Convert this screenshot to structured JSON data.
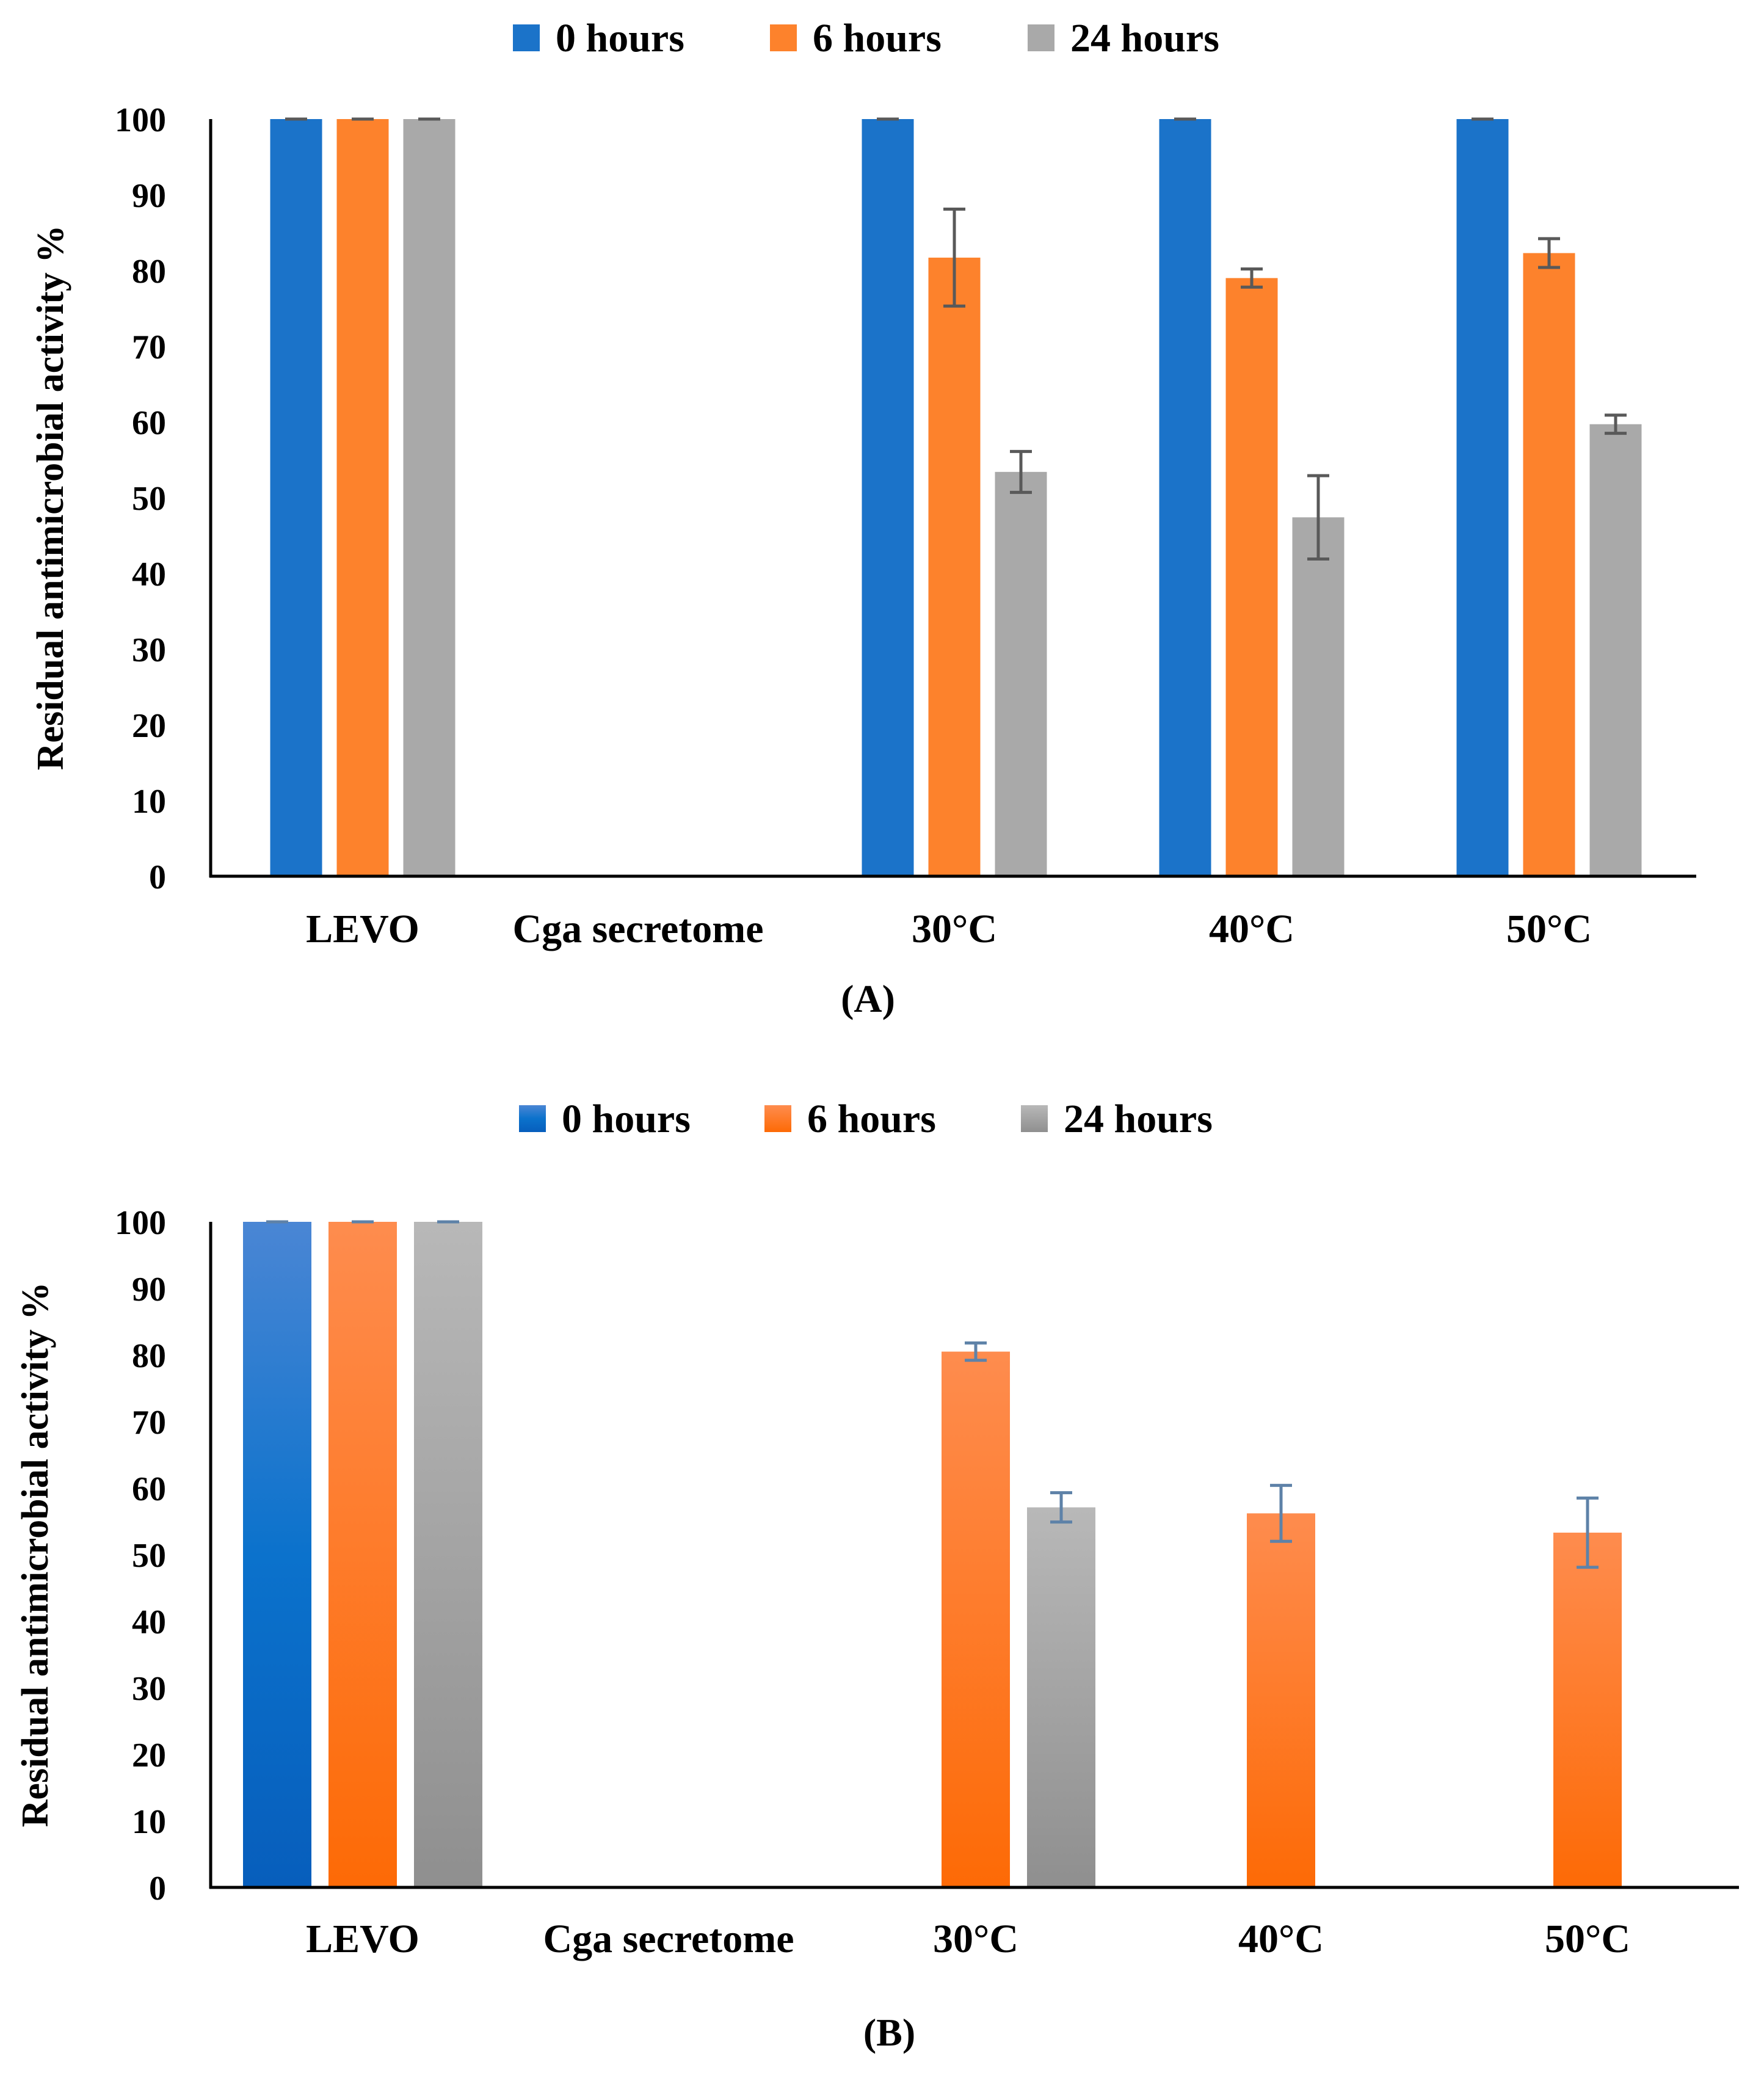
{
  "colors": {
    "blue": "#1b73c9",
    "orange": "#fd822c",
    "gray": "#a9a9a9",
    "error_bar_a": "#595959",
    "error_bar_b": "#5e82a8"
  },
  "chart_data": [
    {
      "type": "bar",
      "panel": "(A)",
      "panel_letter": "A",
      "ylabel": "Residual antimicrobial activity %",
      "ylim": [
        0,
        100
      ],
      "yticks": [
        0,
        10,
        20,
        30,
        40,
        50,
        60,
        70,
        80,
        90,
        100
      ],
      "categories": [
        "LEVO",
        "Cga secretome",
        "30°C",
        "40°C",
        "50°C"
      ],
      "legend_position": "top",
      "series": [
        {
          "name": "0 hours",
          "color": "#1b73c9",
          "values": [
            100,
            0,
            100,
            100,
            100
          ],
          "errors": [
            0,
            0,
            0,
            0,
            0
          ]
        },
        {
          "name": "6 hours",
          "color": "#fd822c",
          "values": [
            100,
            0,
            81.7,
            79,
            82.3
          ],
          "errors": [
            0,
            0,
            6.4,
            1.2,
            1.9
          ]
        },
        {
          "name": "24 hours",
          "color": "#a9a9a9",
          "values": [
            100,
            0,
            53.4,
            47.4,
            59.7
          ],
          "errors": [
            0,
            0,
            2.7,
            5.5,
            1.2
          ]
        }
      ]
    },
    {
      "type": "bar",
      "panel": "(B)",
      "panel_letter": "B",
      "ylabel": "Residual antimicrobial activity %",
      "ylim": [
        0,
        100
      ],
      "yticks": [
        0,
        10,
        20,
        30,
        40,
        50,
        60,
        70,
        80,
        90,
        100
      ],
      "categories": [
        "LEVO",
        "Cga secretome",
        "30°C",
        "40°C",
        "50°C"
      ],
      "legend_position": "top",
      "series": [
        {
          "name": "0 hours",
          "color": "#1b73c9",
          "values": [
            100,
            0,
            0,
            0,
            0
          ],
          "errors": [
            0,
            0,
            0,
            0,
            0
          ]
        },
        {
          "name": "6 hours",
          "color": "#fd822c",
          "values": [
            100,
            0,
            80.5,
            56.2,
            53.3
          ],
          "errors": [
            0,
            0,
            1.3,
            4.2,
            5.2
          ]
        },
        {
          "name": "24 hours",
          "color": "#a9a9a9",
          "values": [
            100,
            0,
            57.1,
            0,
            0
          ],
          "errors": [
            0,
            0,
            2.2,
            0,
            0
          ]
        }
      ]
    }
  ]
}
